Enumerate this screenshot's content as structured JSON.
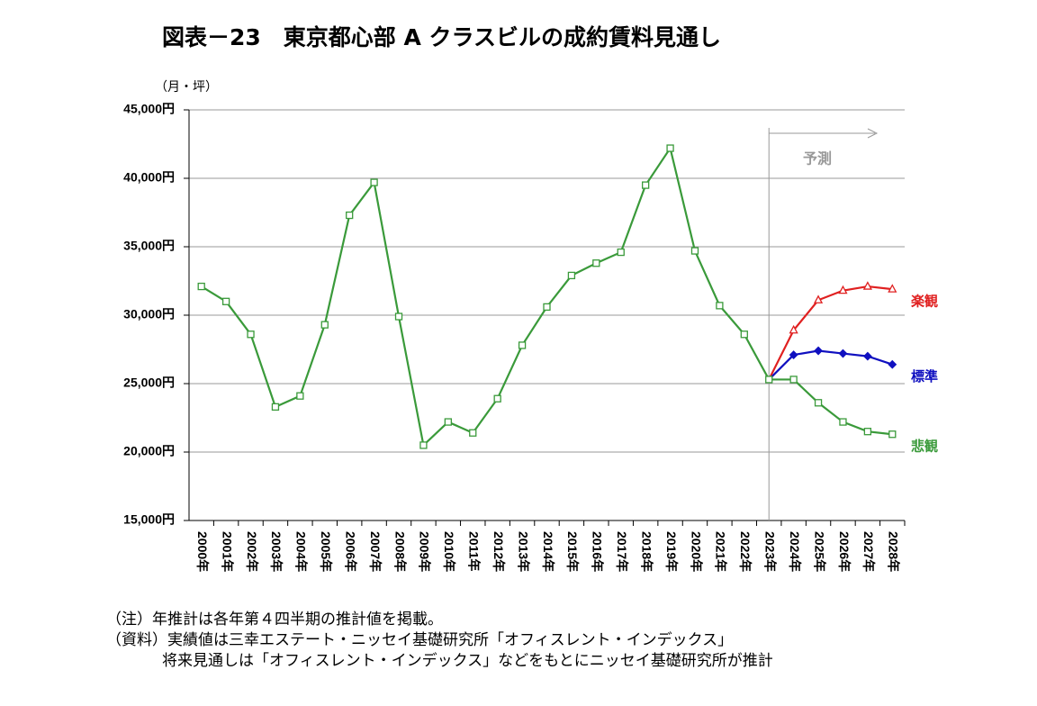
{
  "chart_data": {
    "type": "line",
    "title": "図表－23　東京都心部 A クラスビルの成約賃料見通し",
    "y_label": "（月・坪）",
    "annotation": "予測",
    "categories": [
      "2000年",
      "2001年",
      "2002年",
      "2003年",
      "2004年",
      "2005年",
      "2006年",
      "2007年",
      "2008年",
      "2009年",
      "2010年",
      "2011年",
      "2012年",
      "2013年",
      "2014年",
      "2015年",
      "2016年",
      "2017年",
      "2018年",
      "2019年",
      "2020年",
      "2021年",
      "2022年",
      "2023年",
      "2024年",
      "2025年",
      "2026年",
      "2027年",
      "2028年"
    ],
    "forecast_start": "2023年",
    "ylim": [
      15000,
      45000
    ],
    "yticks": [
      {
        "value": 15000,
        "label": "15,000円"
      },
      {
        "value": 20000,
        "label": "20,000円"
      },
      {
        "value": 25000,
        "label": "25,000円"
      },
      {
        "value": 30000,
        "label": "30,000円"
      },
      {
        "value": 35000,
        "label": "35,000円"
      },
      {
        "value": 40000,
        "label": "40,000円"
      },
      {
        "value": 45000,
        "label": "45,000円"
      }
    ],
    "grid": true,
    "series": [
      {
        "color": "#3a9a3a",
        "marker": "square",
        "values": [
          32100,
          31000,
          28600,
          23300,
          24100,
          29300,
          37300,
          39700,
          29900,
          20500,
          22200,
          21400,
          23900,
          27800,
          30600,
          32900,
          33800,
          34600,
          39500,
          42200,
          34700,
          30700,
          28600,
          25300,
          null,
          null,
          null,
          null,
          null
        ]
      },
      {
        "name": "楽観",
        "color": "#e02020",
        "marker": "triangle",
        "values": [
          null,
          null,
          null,
          null,
          null,
          null,
          null,
          null,
          null,
          null,
          null,
          null,
          null,
          null,
          null,
          null,
          null,
          null,
          null,
          null,
          null,
          null,
          null,
          25300,
          28900,
          31100,
          31800,
          32100,
          31900
        ]
      },
      {
        "name": "標準",
        "color": "#1010c0",
        "marker": "diamond",
        "values": [
          null,
          null,
          null,
          null,
          null,
          null,
          null,
          null,
          null,
          null,
          null,
          null,
          null,
          null,
          null,
          null,
          null,
          null,
          null,
          null,
          null,
          null,
          null,
          25300,
          27100,
          27400,
          27200,
          27000,
          26400
        ]
      },
      {
        "name": "悲観",
        "color": "#3a9a3a",
        "marker": "square",
        "values": [
          null,
          null,
          null,
          null,
          null,
          null,
          null,
          null,
          null,
          null,
          null,
          null,
          null,
          null,
          null,
          null,
          null,
          null,
          null,
          null,
          null,
          null,
          null,
          25300,
          25300,
          23600,
          22200,
          21500,
          21300
        ]
      }
    ],
    "notes": [
      "（注）年推計は各年第４四半期の推計値を掲載。",
      "（資料）実績値は三幸エステート・ニッセイ基礎研究所「オフィスレント・インデックス」",
      "将来見通しは「オフィスレント・インデックス」などをもとにニッセイ基礎研究所が推計"
    ]
  }
}
